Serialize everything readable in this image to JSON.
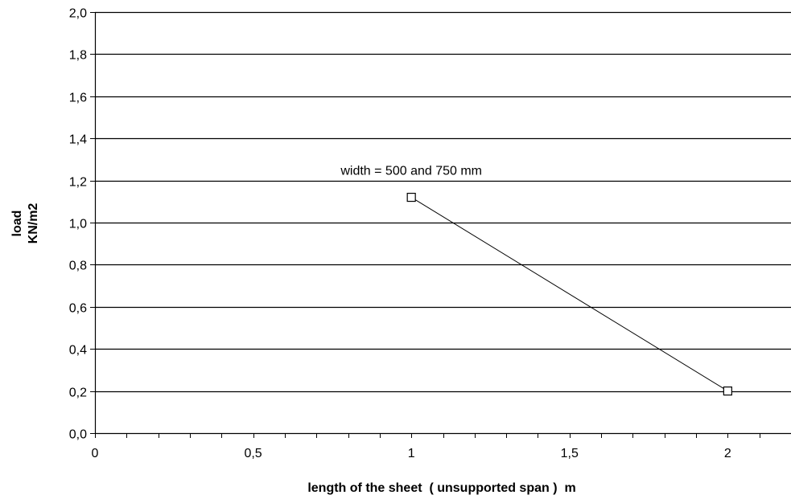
{
  "chart_data": {
    "type": "line",
    "title": "",
    "xlabel": "length of the sheet  ( unsupported span )  m",
    "ylabel_lines": [
      "load",
      "KN/m2"
    ],
    "xlim": [
      0,
      2.2
    ],
    "ylim": [
      0,
      2.0
    ],
    "x_ticks": [
      {
        "value": 0,
        "label": "0"
      },
      {
        "value": 0.5,
        "label": "0,5"
      },
      {
        "value": 1,
        "label": "1"
      },
      {
        "value": 1.5,
        "label": "1,5"
      },
      {
        "value": 2,
        "label": "2"
      }
    ],
    "x_minor_step": 0.1,
    "y_ticks": [
      {
        "value": 0.0,
        "label": "0,0"
      },
      {
        "value": 0.2,
        "label": "0,2"
      },
      {
        "value": 0.4,
        "label": "0,4"
      },
      {
        "value": 0.6,
        "label": "0,6"
      },
      {
        "value": 0.8,
        "label": "0,8"
      },
      {
        "value": 1.0,
        "label": "1,0"
      },
      {
        "value": 1.2,
        "label": "1,2"
      },
      {
        "value": 1.4,
        "label": "1,4"
      },
      {
        "value": 1.6,
        "label": "1,6"
      },
      {
        "value": 1.8,
        "label": "1,8"
      },
      {
        "value": 2.0,
        "label": "2,0"
      }
    ],
    "grid": "horizontal",
    "series": [
      {
        "points": [
          {
            "x": 1,
            "y": 1.12
          },
          {
            "x": 2,
            "y": 0.2
          }
        ],
        "marker": "open-square",
        "color": "#000000"
      }
    ],
    "annotation": {
      "text": "width = 500 and 750 mm",
      "x": 1.0,
      "y": 1.25
    }
  }
}
